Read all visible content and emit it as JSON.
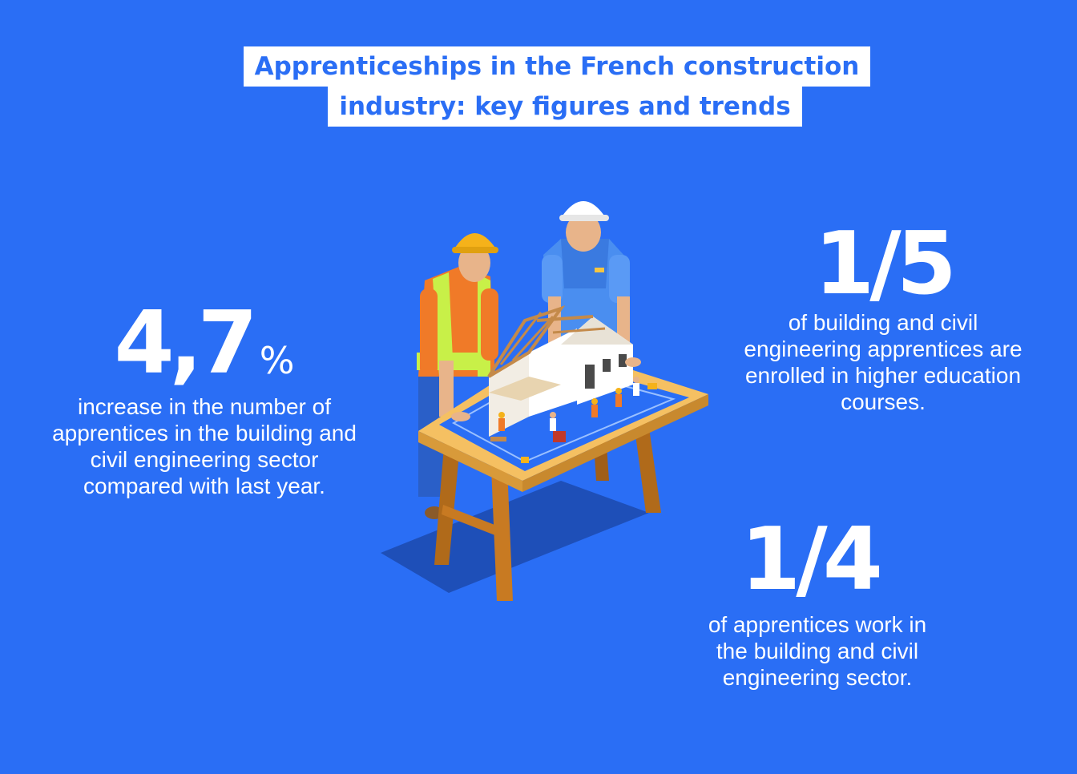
{
  "title": {
    "line1": "Apprenticeships in the French construction",
    "line2": "industry: key figures and trends"
  },
  "stats": [
    {
      "value": "4,7",
      "unit": "%",
      "description": [
        "increase in the number of",
        "apprentices in the building and",
        "civil engineering sector",
        "compared with last year."
      ]
    },
    {
      "value": "1/5",
      "description": [
        "of building and civil",
        "engineering apprentices are",
        "enrolled in higher education",
        "courses."
      ]
    },
    {
      "value": "1/4",
      "description": [
        "of apprentices work in",
        "the building and civil",
        "engineering sector."
      ]
    }
  ],
  "colors": {
    "background": "#2a6ef5",
    "title_text": "#2a6ef5",
    "title_box": "#ffffff",
    "stat_text": "#ffffff"
  },
  "illustration": {
    "subject": "construction-workers-with-house-model",
    "icon": "workers-table-house-illustration"
  }
}
